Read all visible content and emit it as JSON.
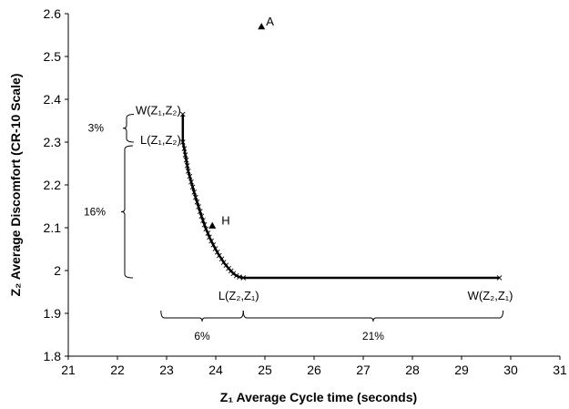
{
  "chart_data": {
    "type": "scatter",
    "xlabel": "Z₁ Average Cycle time (seconds)",
    "ylabel": "Z₂ Average Discomfort (CR-10 Scale)",
    "xlim": [
      21,
      31
    ],
    "ylim": [
      1.8,
      2.6
    ],
    "xticks": [
      21,
      22,
      23,
      24,
      25,
      26,
      27,
      28,
      29,
      30,
      31
    ],
    "yticks": [
      1.8,
      1.9,
      2.0,
      2.1,
      2.2,
      2.3,
      2.4,
      2.5,
      2.6
    ],
    "xtick_labels": [
      "21",
      "22",
      "23",
      "24",
      "25",
      "26",
      "27",
      "28",
      "29",
      "30",
      "31"
    ],
    "ytick_labels": [
      "1.8",
      "1.9",
      "2",
      "2.1",
      "2.2",
      "2.3",
      "2.4",
      "2.5",
      "2.6"
    ],
    "grid": false,
    "series": [
      {
        "marker": "x",
        "color": "#000000",
        "points": [
          [
            23.33,
            2.365
          ],
          [
            23.33,
            2.3
          ],
          [
            23.36,
            2.285
          ],
          [
            23.38,
            2.27
          ],
          [
            23.4,
            2.258
          ],
          [
            23.42,
            2.245
          ],
          [
            23.44,
            2.232
          ],
          [
            23.47,
            2.22
          ],
          [
            23.5,
            2.207
          ],
          [
            23.53,
            2.195
          ],
          [
            23.56,
            2.183
          ],
          [
            23.59,
            2.171
          ],
          [
            23.62,
            2.16
          ],
          [
            23.65,
            2.149
          ],
          [
            23.68,
            2.138
          ],
          [
            23.71,
            2.127
          ],
          [
            23.74,
            2.117
          ],
          [
            23.77,
            2.107
          ],
          [
            23.8,
            2.097
          ],
          [
            23.84,
            2.087
          ],
          [
            23.87,
            2.078
          ],
          [
            23.91,
            2.069
          ],
          [
            23.95,
            2.06
          ],
          [
            23.99,
            2.051
          ],
          [
            24.03,
            2.043
          ],
          [
            24.07,
            2.035
          ],
          [
            24.12,
            2.027
          ],
          [
            24.16,
            2.019
          ],
          [
            24.21,
            2.012
          ],
          [
            24.26,
            2.005
          ],
          [
            24.31,
            1.999
          ],
          [
            24.36,
            1.993
          ],
          [
            24.42,
            1.988
          ],
          [
            24.48,
            1.985
          ],
          [
            24.56,
            1.983
          ],
          [
            29.77,
            1.983
          ]
        ]
      },
      {
        "marker": "triangle",
        "color": "#000000",
        "points": [
          [
            24.93,
            2.57
          ],
          [
            23.93,
            2.105
          ]
        ]
      }
    ],
    "annotations": [
      {
        "id": "a",
        "text": "A",
        "x": 24.93,
        "y": 2.57
      },
      {
        "id": "h",
        "text": "H",
        "x": 23.93,
        "y": 2.105
      },
      {
        "id": "w12",
        "text": "W(Z₁,Z₂)",
        "x": 23.33,
        "y": 2.365
      },
      {
        "id": "l12",
        "text": "L(Z₁,Z₂)",
        "x": 23.33,
        "y": 2.3
      },
      {
        "id": "l21",
        "text": "L(Z₂,Z₁)",
        "x": 24.56,
        "y": 1.983
      },
      {
        "id": "w21",
        "text": "W(Z₂,Z₁)",
        "x": 29.77,
        "y": 1.983
      }
    ],
    "brackets": [
      {
        "id": "b3",
        "label": "3%",
        "orientation": "vertical",
        "from": 2.3,
        "to": 2.365
      },
      {
        "id": "b16",
        "label": "16%",
        "orientation": "vertical",
        "from": 1.983,
        "to": 2.3
      },
      {
        "id": "b6",
        "label": "6%",
        "orientation": "horizontal",
        "from": 23.33,
        "to": 24.56
      },
      {
        "id": "b21",
        "label": "21%",
        "orientation": "horizontal",
        "from": 24.56,
        "to": 29.77
      }
    ]
  }
}
